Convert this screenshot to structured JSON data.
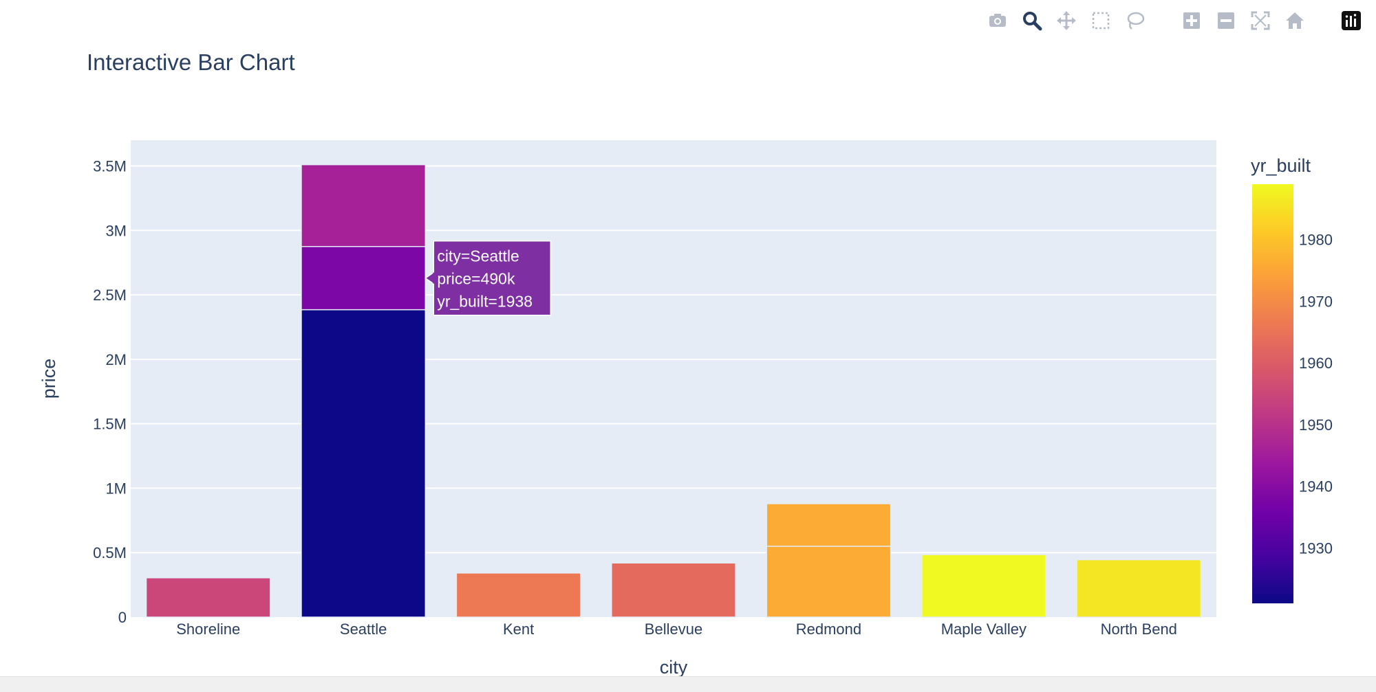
{
  "modebar": {
    "buttons": [
      {
        "name": "camera-icon"
      },
      {
        "name": "zoom-icon"
      },
      {
        "name": "pan-icon"
      },
      {
        "name": "box-select-icon"
      },
      {
        "name": "lasso-select-icon"
      },
      {
        "name": "zoom-in-icon"
      },
      {
        "name": "zoom-out-icon"
      },
      {
        "name": "autoscale-icon"
      },
      {
        "name": "reset-axes-icon"
      },
      {
        "name": "plotly-logo-icon"
      }
    ],
    "active_color": "#2a3f5f",
    "inactive_color": "#b5bcc7"
  },
  "chart_data": {
    "type": "bar",
    "title": "Interactive Bar Chart",
    "xlabel": "city",
    "ylabel": "price",
    "categories": [
      "Shoreline",
      "Seattle",
      "Kent",
      "Bellevue",
      "Redmond",
      "Maple Valley",
      "North Bend"
    ],
    "ylim": [
      0,
      3700000
    ],
    "yticks": [
      {
        "value": 0,
        "label": "0"
      },
      {
        "value": 500000,
        "label": "0.5M"
      },
      {
        "value": 1000000,
        "label": "1M"
      },
      {
        "value": 1500000,
        "label": "1.5M"
      },
      {
        "value": 2000000,
        "label": "2M"
      },
      {
        "value": 2500000,
        "label": "2.5M"
      },
      {
        "value": 3000000,
        "label": "3M"
      },
      {
        "value": 3500000,
        "label": "3.5M"
      }
    ],
    "segments": [
      {
        "city": "Shoreline",
        "price": 305000,
        "yr_built": 1955
      },
      {
        "city": "Seattle",
        "price": 2385000,
        "yr_built": 1921
      },
      {
        "city": "Seattle",
        "price": 490000,
        "yr_built": 1938
      },
      {
        "city": "Seattle",
        "price": 635000,
        "yr_built": 1946
      },
      {
        "city": "Kent",
        "price": 342000,
        "yr_built": 1966
      },
      {
        "city": "Bellevue",
        "price": 420000,
        "yr_built": 1963
      },
      {
        "city": "Redmond",
        "price": 550000,
        "yr_built": 1976
      },
      {
        "city": "Redmond",
        "price": 330000,
        "yr_built": 1976
      },
      {
        "city": "Maple Valley",
        "price": 485000,
        "yr_built": 1989
      },
      {
        "city": "North Bend",
        "price": 445000,
        "yr_built": 1986
      }
    ],
    "colorbar": {
      "title": "yr_built",
      "range": [
        1921,
        1989
      ],
      "ticks": [
        1930,
        1940,
        1950,
        1960,
        1970,
        1980
      ],
      "colorscale": [
        "#0d0887",
        "#46039f",
        "#7201a8",
        "#9c179e",
        "#bd3786",
        "#d8576b",
        "#ed7953",
        "#fb9f3a",
        "#fdca26",
        "#f0f921"
      ]
    },
    "tooltip": {
      "lines": [
        "city=Seattle",
        "price=490k",
        "yr_built=1938"
      ],
      "color": "#7e2fa1"
    },
    "plot_bg": "#e5ecf6",
    "text_color": "#2a3f5f"
  }
}
